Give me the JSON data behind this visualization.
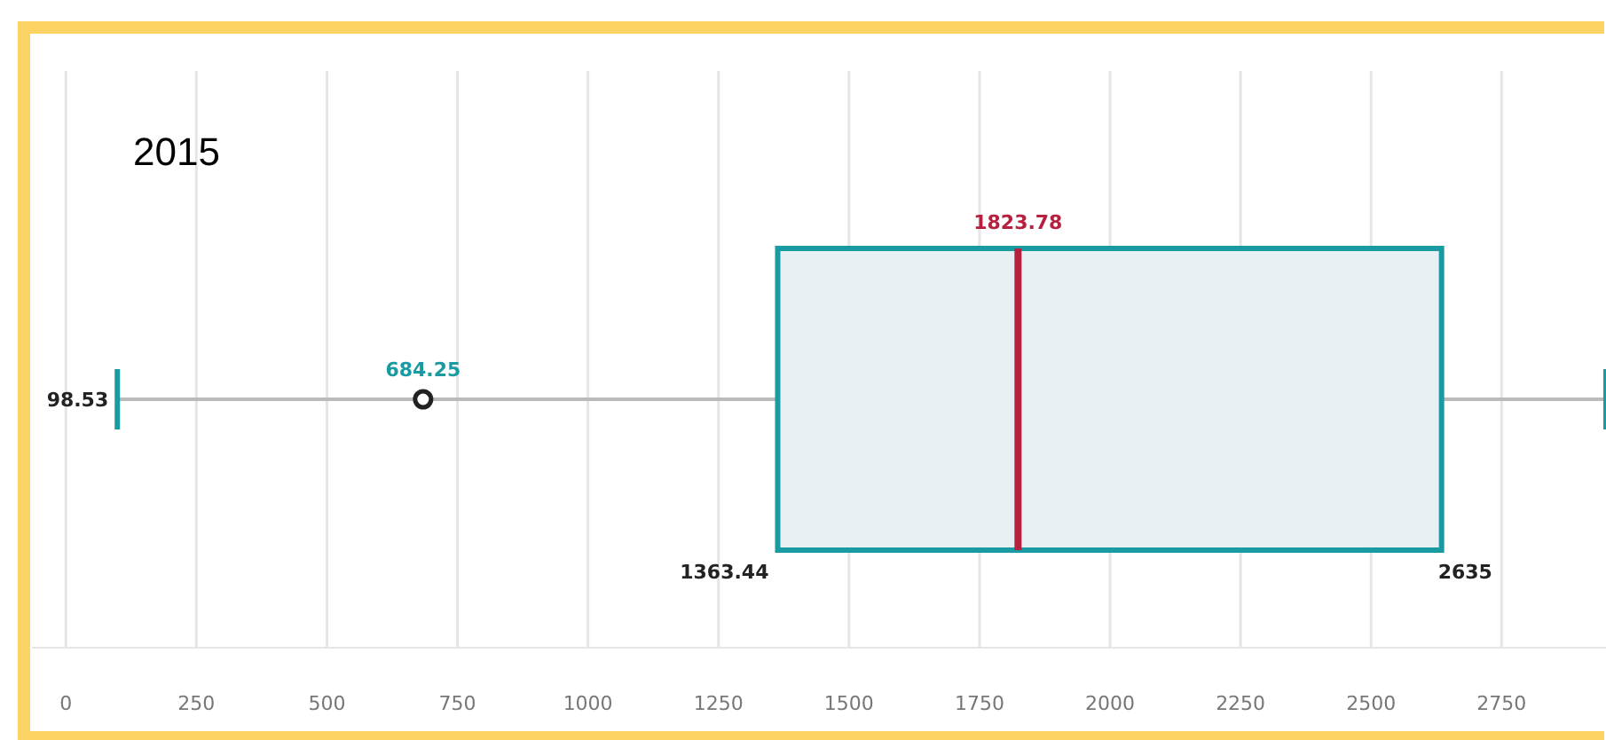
{
  "chart_data": {
    "type": "box",
    "title": "2015",
    "orientation": "horizontal",
    "categories": [
      null
    ],
    "boxes": [
      {
        "low": 98.53,
        "q1": 1363.44,
        "median": 1823.78,
        "q3": 2635,
        "high": 2950,
        "mean": 684.25
      }
    ],
    "color": "#1a9ba1",
    "xlim": [
      -65,
      2950
    ],
    "xticks": [
      0,
      250,
      500,
      750,
      1000,
      1250,
      1500,
      1750,
      2000,
      2250,
      2500,
      2750
    ],
    "grid": "x",
    "annotations": [
      "98.53",
      "684.25",
      "1363.44",
      "1823.78",
      "2635"
    ]
  }
}
